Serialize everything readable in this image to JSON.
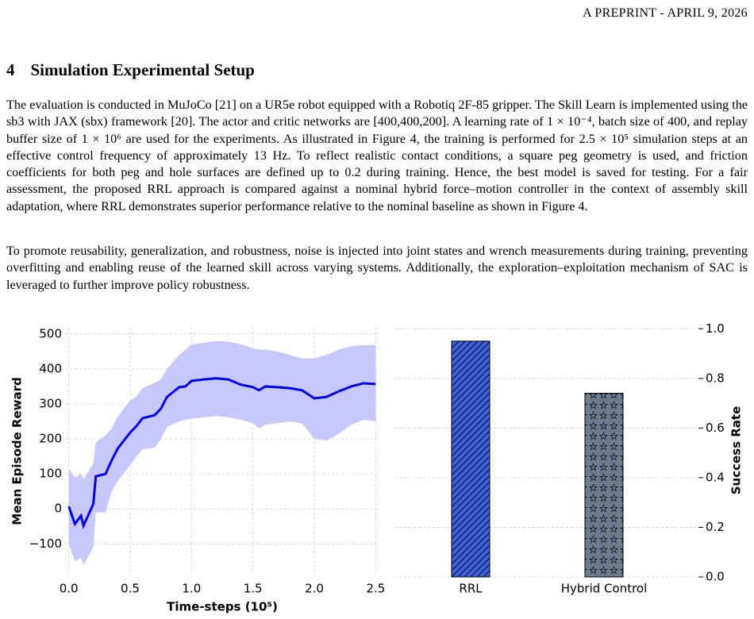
{
  "header": "A PREPRINT - APRIL 9, 2026",
  "section": {
    "number": "4",
    "title": "Simulation Experimental Setup"
  },
  "paragraphs": [
    "The evaluation is conducted in MuJoCo [21] on a UR5e robot equipped with a Robotiq 2F-85 gripper. The Skill Learn is implemented using the sb3 with JAX (sbx) framework [20]. The actor and critic networks are [400,400,200]. A learning rate of 1 × 10⁻⁴, batch size of 400, and replay buffer size of 1 × 10⁶ are used for the experiments. As illustrated in Figure 4, the training is performed for 2.5 × 10⁵ simulation steps at an effective control frequency of approximately 13 Hz. To reflect realistic contact conditions, a square peg geometry is used, and friction coefficients for both peg and hole surfaces are defined up to 0.2 during training. Hence, the best model is saved for testing. For a fair assessment, the proposed RRL approach is compared against a nominal hybrid force–motion controller in the context of assembly skill adaptation, where RRL demonstrates superior performance relative to the nominal baseline as shown in Figure 4.",
    "To promote reusability, generalization, and robustness, noise is injected into joint states and wrench measurements during training, preventing overfitting and enabling reuse of the learned skill across varying systems. Additionally, the exploration–exploitation mechanism of SAC is leveraged to further improve policy robustness."
  ],
  "chart_data": [
    {
      "type": "line",
      "x_label": "Time-steps (10⁵)",
      "y_label": "Mean Episode Reward",
      "x": [
        0,
        0.05,
        0.1,
        0.12,
        0.2,
        0.22,
        0.3,
        0.35,
        0.4,
        0.5,
        0.55,
        0.6,
        0.7,
        0.75,
        0.8,
        0.9,
        0.95,
        1.0,
        1.1,
        1.2,
        1.3,
        1.4,
        1.5,
        1.55,
        1.6,
        1.7,
        1.8,
        1.9,
        2.0,
        2.1,
        2.2,
        2.3,
        2.4,
        2.5
      ],
      "series": [
        {
          "color": "#0000e6",
          "values": [
            7,
            -43,
            -20,
            -48,
            14,
            93,
            100,
            139,
            173,
            218,
            236,
            259,
            268,
            286,
            320,
            348,
            350,
            366,
            370,
            373,
            370,
            355,
            348,
            339,
            350,
            348,
            345,
            339,
            316,
            320,
            336,
            350,
            359,
            357
          ]
        }
      ],
      "band": {
        "color": "#c8c8ff",
        "upper": [
          115,
          90,
          100,
          85,
          130,
          190,
          210,
          230,
          265,
          310,
          320,
          345,
          360,
          370,
          400,
          440,
          455,
          470,
          475,
          480,
          478,
          470,
          460,
          455,
          455,
          450,
          440,
          430,
          430,
          440,
          455,
          465,
          468,
          468
        ],
        "lower": [
          -100,
          -150,
          -140,
          -160,
          -110,
          -10,
          -10,
          50,
          80,
          125,
          150,
          170,
          175,
          200,
          235,
          250,
          255,
          258,
          262,
          265,
          262,
          255,
          245,
          230,
          240,
          245,
          250,
          245,
          200,
          195,
          215,
          240,
          255,
          250
        ]
      },
      "xlim": [
        -0.03,
        2.53
      ],
      "ylim": [
        -190,
        520
      ],
      "xticks": [
        {
          "value": 0,
          "label": "0.0"
        },
        0.5,
        {
          "value": 1,
          "label": "1.0"
        },
        1.5,
        {
          "value": 2,
          "label": "2.0"
        },
        2.5
      ],
      "yticks": [
        {
          "value": -100,
          "label": "−100"
        },
        0,
        100,
        200,
        300,
        400,
        500
      ],
      "grid": true
    },
    {
      "type": "bar",
      "categories": [
        "RRL",
        "Hybrid Control"
      ],
      "values": [
        0.95,
        0.74
      ],
      "colors": [
        "#3d5fe0",
        "#6b7b8c"
      ],
      "hatches": [
        "//",
        "*"
      ],
      "y_label": "Success Rate",
      "axis": "y2",
      "ylim": [
        0,
        1.02
      ],
      "yticks": [
        {
          "value": 0,
          "label": "0.0"
        },
        0.2,
        0.4,
        0.6,
        0.8,
        {
          "value": 1,
          "label": "1.0"
        }
      ],
      "grid": true
    }
  ]
}
